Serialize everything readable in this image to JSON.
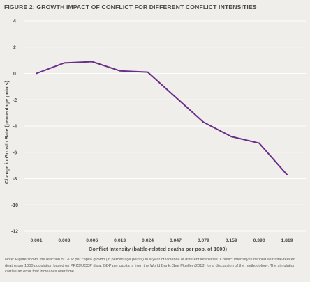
{
  "figure_title": "FIGURE 2: GROWTH IMPACT OF CONFLICT FOR DIFFERENT CONFLICT INTENSITIES",
  "note": "Note: Figure shows the reaction of GDP per capita growth (in percentage points) to a year of violence of different intensities. Conflict intensity is defined as battle-related deaths per 1000 population based on PRIO/UCDP data. GDP per capita is from the World Bank. See Mueller (2013) for a discussion of the methodology. The simulation carries an error that increases over time.",
  "colors": {
    "background": "#efeeea",
    "line": "#6b2d8a",
    "grid": "#ffffff",
    "text": "#4a4a4a"
  },
  "chart_data": {
    "type": "line",
    "title": "FIGURE 2: GROWTH IMPACT OF CONFLICT FOR DIFFERENT CONFLICT INTENSITIES",
    "xlabel": "Conflict Intensity (battle-related deaths per pop. of 1000)",
    "ylabel": "Change in Growth Rate (percentage points)",
    "categories": [
      "0.001",
      "0.003",
      "0.006",
      "0.013",
      "0.024",
      "0.047",
      "0.079",
      "0.159",
      "0.390",
      "1.819"
    ],
    "values": [
      0.0,
      0.8,
      0.9,
      0.2,
      0.1,
      -1.8,
      -3.7,
      -4.8,
      -5.3,
      -7.7
    ],
    "yticks": [
      "4",
      "2",
      "0",
      "-2",
      "-4",
      "-6",
      "-8",
      "-10",
      "-12"
    ],
    "ylim": [
      -12,
      4
    ],
    "grid": true,
    "legend": "none"
  }
}
